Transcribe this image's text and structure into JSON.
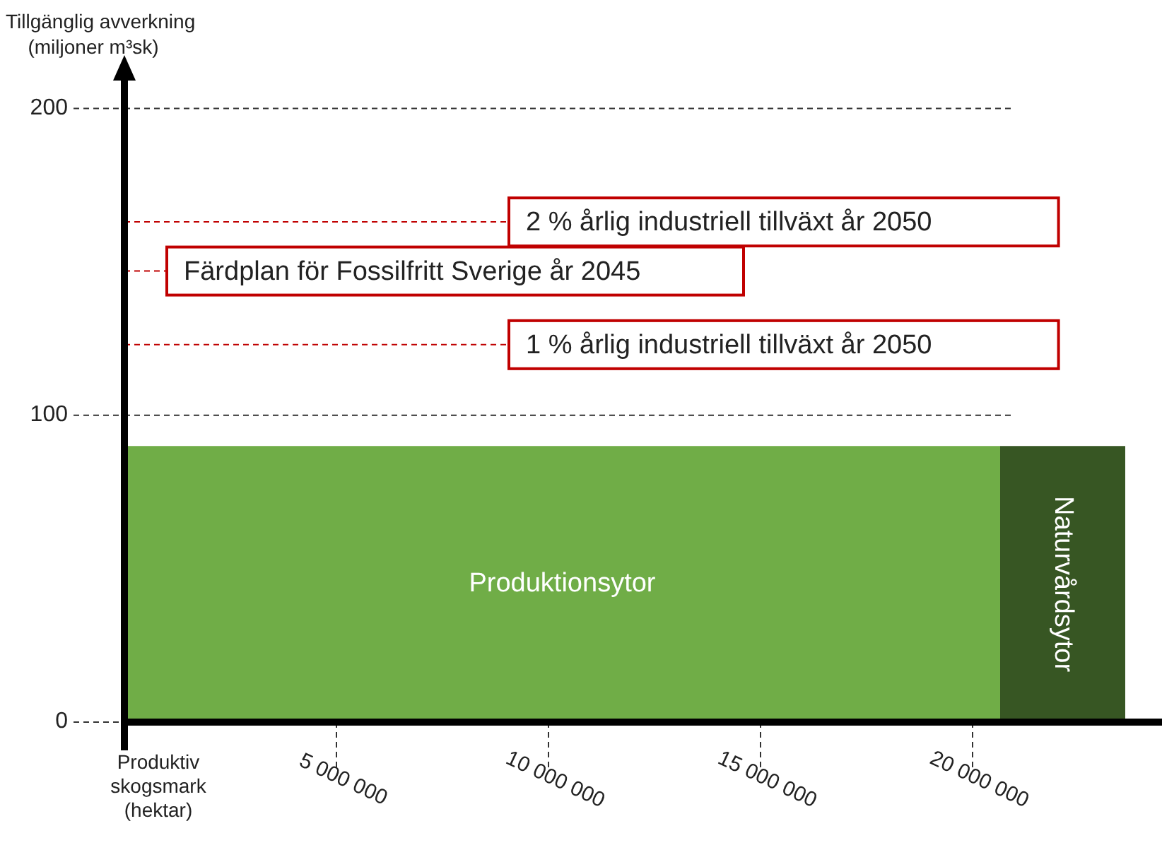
{
  "chart_data": {
    "type": "area",
    "xlabel": "Produktiv skogsmark (hektar)",
    "ylabel": "Tillgänglig avverkning (miljoner m³sk)",
    "xlim": [
      0,
      24600000
    ],
    "ylim": [
      0,
      210
    ],
    "xticks": [
      {
        "value": 5000000,
        "label": "5 000 000"
      },
      {
        "value": 10000000,
        "label": "10 000 000"
      },
      {
        "value": 15000000,
        "label": "15 000 000"
      },
      {
        "value": 20000000,
        "label": "20 000 000"
      }
    ],
    "yticks": [
      0,
      100,
      200
    ],
    "grid": "y",
    "legend": false,
    "series": [
      {
        "name": "Produktionsytor",
        "color": "#70ad47",
        "x": [
          0,
          20650000
        ],
        "values": [
          90,
          90
        ]
      },
      {
        "name": "Naturvårdsytor",
        "color": "#375623",
        "x": [
          20650000,
          23600000
        ],
        "values": [
          90,
          90
        ]
      }
    ],
    "ref_lines": [
      {
        "axis": "y",
        "value": 163,
        "label": "2 % årlig industriell tillväxt år 2050",
        "color": "#c00000",
        "line_style": "dashed"
      },
      {
        "axis": "y",
        "value": 147,
        "label": "Färdplan för Fossilfritt Sverige år 2045",
        "color": "#c00000",
        "line_style": "dashed"
      },
      {
        "axis": "y",
        "value": 123,
        "label": "1 % årlig industriell tillväxt år 2050",
        "color": "#c00000",
        "line_style": "dashed"
      }
    ]
  }
}
